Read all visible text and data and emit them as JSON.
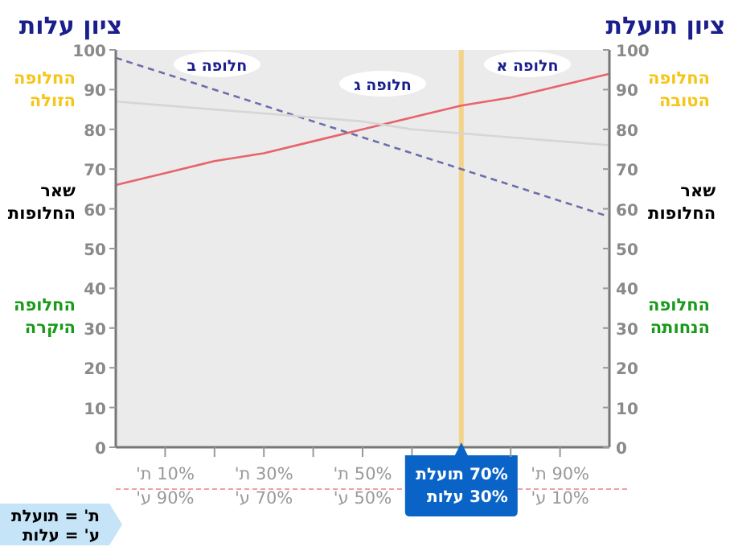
{
  "chart_data": {
    "type": "line",
    "ylabel": "ציון עלות",
    "y2label": "ציון תועלת",
    "categories": [
      null,
      "10% ת'\n90% ע'",
      null,
      "30% ת'\n70% ע'",
      null,
      "50% ת'\n50% ע'",
      null,
      "70% תועלת\n30% עלות",
      null,
      "90% ת'\n10% ע'",
      null
    ],
    "series": [
      {
        "color": "#e8636b",
        "values": [
          66,
          69,
          72,
          74,
          77,
          80,
          83,
          86,
          88,
          91,
          94
        ],
        "line_style": "solid"
      },
      {
        "color": "#6b6fa8",
        "values": [
          98,
          94,
          90,
          86,
          82,
          78,
          74,
          70,
          66,
          62,
          58
        ],
        "line_style": "dashed"
      },
      {
        "color": "#d6d6d6",
        "values": [
          87,
          86,
          85,
          84,
          83,
          82,
          80,
          79,
          78,
          77,
          76
        ],
        "line_style": "solid"
      }
    ],
    "ylim": [
      0,
      100
    ],
    "yticks": [
      0,
      10,
      20,
      30,
      40,
      50,
      60,
      70,
      80,
      90,
      100
    ],
    "y2lim": [
      0,
      100
    ],
    "y2ticks": [
      0,
      10,
      20,
      30,
      40,
      50,
      60,
      70,
      80,
      90,
      100
    ],
    "ref_lines": [
      {
        "axis": "x",
        "value": "70% תועלת\n30% עלות",
        "color": "#f2d38a"
      }
    ],
    "annotations": [
      "חלופה א",
      "חלופה ב",
      "חלופה ג",
      "החלופה הזולה",
      "שאר החלופות",
      "החלופה היקרה",
      "החלופה הטובה",
      "שאר החלופות",
      "החלופה הנחותה",
      "ת' = תועלת\nע' = עלות"
    ],
    "grid": false,
    "marker": "none"
  }
}
